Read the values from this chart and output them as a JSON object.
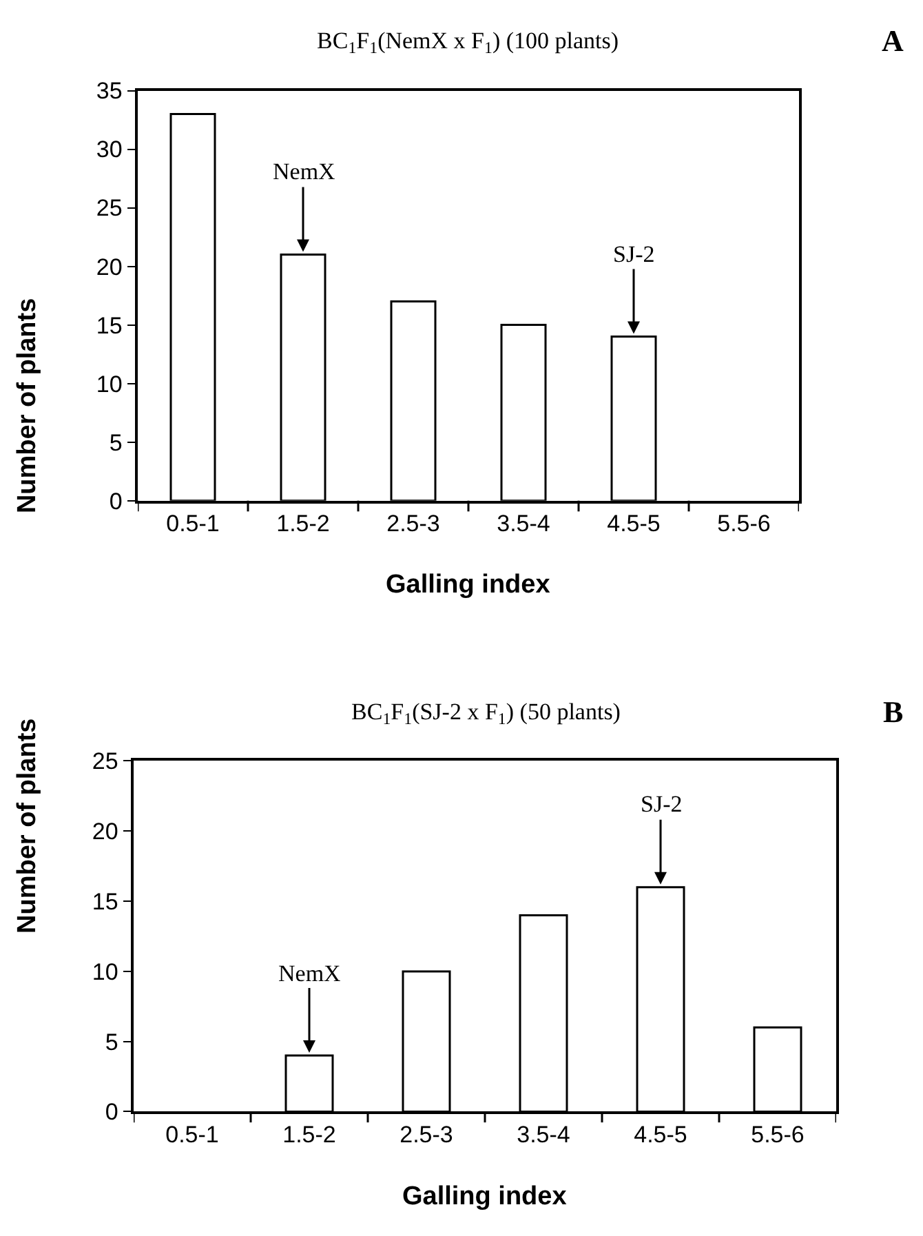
{
  "chart_data": [
    {
      "type": "bar",
      "title": "BC$_{1}$F$_{1}$(NemX x F$_{1}$) (100 plants)",
      "xlabel": "Galling index",
      "ylabel": "Number of plants",
      "categories": [
        "0.5-1",
        "1.5-2",
        "2.5-3",
        "3.5-4",
        "4.5-5",
        "5.5-6"
      ],
      "values": [
        33,
        21,
        17,
        15,
        14,
        0
      ],
      "color": "#ffffff",
      "ylim": [
        0,
        35
      ],
      "yticks": [
        0,
        5,
        10,
        15,
        20,
        25,
        30,
        35
      ],
      "annotations": [
        "A",
        {
          "text": "NemX",
          "x": "1.5-2",
          "y": 21
        },
        {
          "text": "SJ-2",
          "x": "4.5-5",
          "y": 14
        }
      ]
    },
    {
      "type": "bar",
      "title": "BC$_{1}$F$_{1}$(SJ-2 x F$_{1}$) (50 plants)",
      "xlabel": "Galling index",
      "ylabel": "Number of plants",
      "categories": [
        "0.5-1",
        "1.5-2",
        "2.5-3",
        "3.5-4",
        "4.5-5",
        "5.5-6"
      ],
      "values": [
        0,
        4,
        10,
        14,
        16,
        6
      ],
      "color": "#ffffff",
      "ylim": [
        0,
        25
      ],
      "yticks": [
        0,
        5,
        10,
        15,
        20,
        25
      ],
      "annotations": [
        "B",
        {
          "text": "NemX",
          "x": "1.5-2",
          "y": 4
        },
        {
          "text": "SJ-2",
          "x": "4.5-5",
          "y": 16
        }
      ]
    }
  ]
}
